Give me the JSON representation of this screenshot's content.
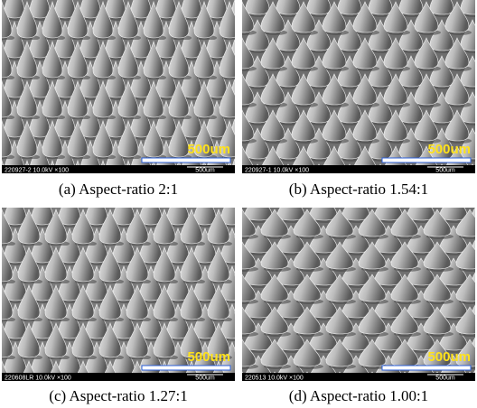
{
  "panels": [
    {
      "overlay_label": "500um",
      "footer_left": "220927-2 10.0kV ×100",
      "footer_right": "500um",
      "caption": "(a) Aspect-ratio 2:1"
    },
    {
      "overlay_label": "500um",
      "footer_left": "220927-1 10.0kV ×100",
      "footer_right": "500um",
      "caption": "(b) Aspect-ratio 1.54:1"
    },
    {
      "overlay_label": "500um",
      "footer_left": "220608LR 10.0kV ×100",
      "footer_right": "500um",
      "caption": "(c) Aspect-ratio 1.27:1"
    },
    {
      "overlay_label": "500um",
      "footer_left": "220513 10.0kV ×100",
      "footer_right": "500um",
      "caption": "(d) Aspect-ratio 1.00:1"
    }
  ]
}
